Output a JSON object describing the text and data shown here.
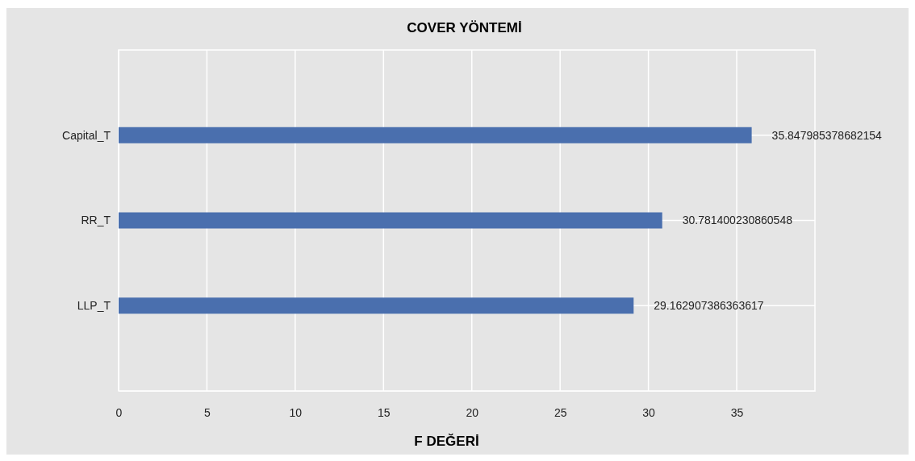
{
  "chart_data": {
    "type": "bar",
    "orientation": "horizontal",
    "title": "COVER YÖNTEMİ",
    "xlabel": "F DEĞERİ",
    "categories": [
      "Capital_T",
      "RR_T",
      "LLP_T"
    ],
    "values": [
      35.847985378682154,
      30.781400230860548,
      29.162907386363617
    ],
    "color": "#4a6fae",
    "xlim": [
      0,
      39.43
    ],
    "xticks": [
      0,
      5,
      10,
      15,
      20,
      25,
      30,
      35
    ],
    "grid": true,
    "data_labels": true
  }
}
